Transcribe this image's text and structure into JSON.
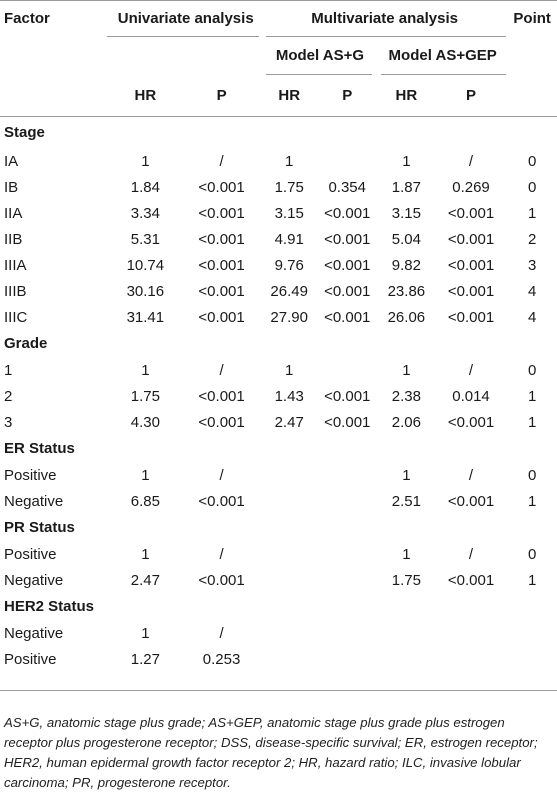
{
  "header": {
    "factor": "Factor",
    "univariate": "Univariate analysis",
    "multivariate": "Multivariate analysis",
    "point": "Point",
    "model_asg": "Model AS+G",
    "model_asgep": "Model AS+GEP",
    "hr": "HR",
    "p": "P"
  },
  "sections": [
    {
      "title": "Stage",
      "rows": [
        [
          "IA",
          "1",
          "/",
          "1",
          "",
          "1",
          "/",
          "0"
        ],
        [
          "IB",
          "1.84",
          "<0.001",
          "1.75",
          "0.354",
          "1.87",
          "0.269",
          "0"
        ],
        [
          "IIA",
          "3.34",
          "<0.001",
          "3.15",
          "<0.001",
          "3.15",
          "<0.001",
          "1"
        ],
        [
          "IIB",
          "5.31",
          "<0.001",
          "4.91",
          "<0.001",
          "5.04",
          "<0.001",
          "2"
        ],
        [
          "IIIA",
          "10.74",
          "<0.001",
          "9.76",
          "<0.001",
          "9.82",
          "<0.001",
          "3"
        ],
        [
          "IIIB",
          "30.16",
          "<0.001",
          "26.49",
          "<0.001",
          "23.86",
          "<0.001",
          "4"
        ],
        [
          "IIIC",
          "31.41",
          "<0.001",
          "27.90",
          "<0.001",
          "26.06",
          "<0.001",
          "4"
        ]
      ]
    },
    {
      "title": "Grade",
      "rows": [
        [
          "1",
          "1",
          "/",
          "1",
          "",
          "1",
          "/",
          "0"
        ],
        [
          "2",
          "1.75",
          "<0.001",
          "1.43",
          "<0.001",
          "2.38",
          "0.014",
          "1"
        ],
        [
          "3",
          "4.30",
          "<0.001",
          "2.47",
          "<0.001",
          "2.06",
          "<0.001",
          "1"
        ]
      ]
    },
    {
      "title": "ER Status",
      "rows": [
        [
          "Positive",
          "1",
          "/",
          "",
          "",
          "1",
          "/",
          "0"
        ],
        [
          "Negative",
          "6.85",
          "<0.001",
          "",
          "",
          "2.51",
          "<0.001",
          "1"
        ]
      ]
    },
    {
      "title": "PR Status",
      "rows": [
        [
          "Positive",
          "1",
          "/",
          "",
          "",
          "1",
          "/",
          "0"
        ],
        [
          "Negative",
          "2.47",
          "<0.001",
          "",
          "",
          "1.75",
          "<0.001",
          "1"
        ]
      ]
    },
    {
      "title": "HER2 Status",
      "rows": [
        [
          "Negative",
          "1",
          "/",
          "",
          "",
          "",
          "",
          ""
        ],
        [
          "Positive",
          "1.27",
          "0.253",
          "",
          "",
          "",
          "",
          ""
        ]
      ]
    }
  ],
  "footnote": "AS+G, anatomic stage plus grade; AS+GEP, anatomic stage plus grade plus estrogen receptor plus progesterone receptor; DSS, disease-specific survival; ER, estrogen receptor; HER2, human epidermal growth factor receptor 2; HR, hazard ratio; ILC, invasive lobular carcinoma; PR, progesterone receptor."
}
